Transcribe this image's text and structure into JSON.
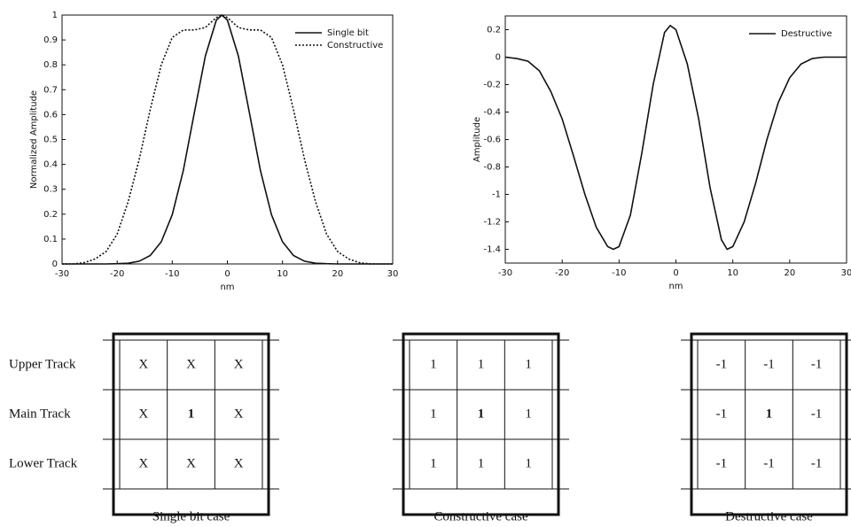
{
  "chart_data": [
    {
      "type": "line",
      "ylabel": "Normalized Amplitude",
      "xlabel": "nm",
      "x": [
        -30,
        -28,
        -26,
        -24,
        -22,
        -20,
        -18,
        -16,
        -14,
        -12,
        -10,
        -8,
        -6,
        -4,
        -2,
        -1,
        0,
        2,
        4,
        6,
        8,
        10,
        12,
        14,
        16,
        18,
        20,
        22,
        24,
        26,
        28,
        30
      ],
      "series": [
        {
          "name": "Single bit",
          "color": "#111111",
          "dash": "solid",
          "values": [
            0,
            0,
            0,
            0,
            0,
            0.001,
            0.003,
            0.011,
            0.034,
            0.089,
            0.198,
            0.375,
            0.607,
            0.835,
            0.98,
            1,
            0.98,
            0.835,
            0.607,
            0.375,
            0.198,
            0.089,
            0.034,
            0.011,
            0.003,
            0.001,
            0,
            0,
            0,
            0,
            0,
            0
          ]
        },
        {
          "name": "Constructive",
          "color": "#111111",
          "dash": "dotted",
          "values": [
            0,
            0,
            0.005,
            0.02,
            0.05,
            0.12,
            0.25,
            0.42,
            0.62,
            0.8,
            0.91,
            0.94,
            0.94,
            0.95,
            0.99,
            1,
            0.99,
            0.95,
            0.94,
            0.94,
            0.91,
            0.8,
            0.62,
            0.42,
            0.25,
            0.12,
            0.05,
            0.02,
            0.005,
            0,
            0,
            0
          ]
        }
      ],
      "xlim": [
        -30,
        30
      ],
      "xticks": [
        -30,
        -20,
        -10,
        0,
        10,
        20,
        30
      ],
      "ylim": [
        0,
        1
      ],
      "yticks": [
        0,
        0.1,
        0.2,
        0.3,
        0.4,
        0.5,
        0.6,
        0.7,
        0.8,
        0.9,
        1
      ],
      "legend": "upper right",
      "grid": false
    },
    {
      "type": "line",
      "ylabel": "Amplitude",
      "xlabel": "nm",
      "x": [
        -30,
        -28,
        -26,
        -24,
        -22,
        -20,
        -18,
        -16,
        -14,
        -12,
        -11,
        -10,
        -8,
        -6,
        -4,
        -2,
        -1,
        0,
        2,
        4,
        6,
        8,
        9,
        10,
        12,
        14,
        16,
        18,
        20,
        22,
        24,
        26,
        28,
        30
      ],
      "series": [
        {
          "name": "Destructive",
          "color": "#111111",
          "dash": "solid",
          "values": [
            0,
            -0.01,
            -0.03,
            -0.1,
            -0.25,
            -0.45,
            -0.72,
            -1.0,
            -1.24,
            -1.38,
            -1.4,
            -1.38,
            -1.15,
            -0.7,
            -0.2,
            0.18,
            0.23,
            0.2,
            -0.05,
            -0.45,
            -0.95,
            -1.33,
            -1.4,
            -1.38,
            -1.2,
            -0.92,
            -0.6,
            -0.33,
            -0.15,
            -0.05,
            -0.01,
            0,
            0,
            0
          ]
        }
      ],
      "xlim": [
        -30,
        30
      ],
      "xticks": [
        -30,
        -20,
        -10,
        0,
        10,
        20,
        30
      ],
      "ylim": [
        -1.5,
        0.3
      ],
      "yticks": [
        -1.4,
        -1.2,
        -1,
        -0.8,
        -0.6,
        -0.4,
        -0.2,
        0,
        0.2
      ],
      "legend": "upper right",
      "grid": false
    }
  ],
  "track_labels": [
    "Upper Track",
    "Main Track",
    "Lower Track"
  ],
  "diagrams": [
    {
      "caption": "Single bit case",
      "cells": [
        [
          "X",
          "X",
          "X"
        ],
        [
          "X",
          "1",
          "X"
        ],
        [
          "X",
          "X",
          "X"
        ]
      ]
    },
    {
      "caption": "Constructive case",
      "cells": [
        [
          "1",
          "1",
          "1"
        ],
        [
          "1",
          "1",
          "1"
        ],
        [
          "1",
          "1",
          "1"
        ]
      ]
    },
    {
      "caption": "Destructive case",
      "cells": [
        [
          "-1",
          "-1",
          "-1"
        ],
        [
          "-1",
          "1",
          "-1"
        ],
        [
          "-1",
          "-1",
          "-1"
        ]
      ]
    }
  ]
}
